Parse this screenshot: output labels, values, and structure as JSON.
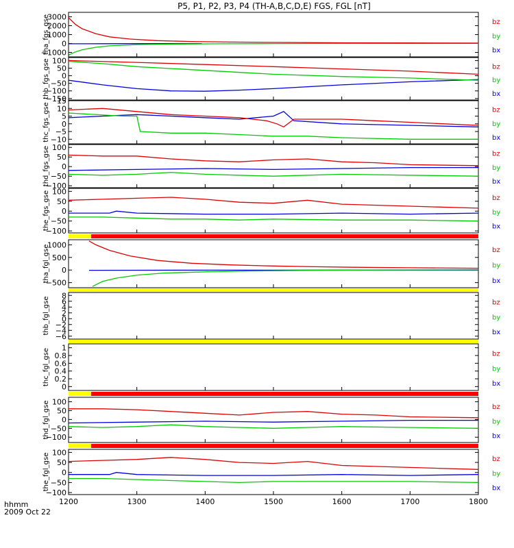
{
  "figure": {
    "title": "P5, P1, P2, P3, P4 (TH-A,B,C,D,E) FGS, FGL [nT]",
    "footer_hhmm": "hhmm",
    "footer_date": "2009 Oct 22",
    "x_ticks": [
      "1200",
      "1300",
      "1400",
      "1500",
      "1600",
      "1700",
      "1800"
    ]
  },
  "colors": {
    "bz": "#dd0000",
    "by": "#00cc00",
    "bx": "#0000dd",
    "bar_yellow": "#ffff00",
    "bar_red": "#ff0000"
  },
  "chart_data": {
    "type": "line",
    "x_range": [
      1200,
      1800
    ],
    "x_unit": "hhmm",
    "legend_labels": [
      "bz",
      "by",
      "bx"
    ],
    "panels": [
      {
        "name": "tha_fgs_gse",
        "ylim": [
          -1500,
          3500
        ],
        "yticks": [
          3000,
          2000,
          1000,
          0,
          -1000
        ],
        "series": {
          "bz": {
            "x": [
              1200,
              1210,
              1220,
              1240,
              1260,
              1290,
              1330,
              1380,
              1440,
              1500,
              1560,
              1620,
              1700,
              1800
            ],
            "y": [
              2900,
              2150,
              1650,
              1100,
              750,
              500,
              320,
              220,
              160,
              120,
              90,
              75,
              60,
              50
            ]
          },
          "by": {
            "x": [
              1200,
              1210,
              1220,
              1240,
              1260,
              1300,
              1360,
              1420,
              1500,
              1600,
              1800
            ],
            "y": [
              -1300,
              -950,
              -700,
              -420,
              -260,
              -120,
              -60,
              -30,
              -10,
              0,
              10
            ]
          },
          "bx": {
            "x": [
              1200,
              1250,
              1300,
              1395
            ],
            "y": [
              -30,
              -20,
              -15,
              -10
            ]
          }
        }
      },
      {
        "name": "thb_fgs_gse",
        "ylim": [
          -160,
          120
        ],
        "yticks": [
          100,
          50,
          0,
          -50,
          -100,
          -150
        ],
        "series": {
          "bz": {
            "x": [
              1200,
              1300,
              1400,
              1500,
              1600,
              1700,
              1800
            ],
            "y": [
              100,
              88,
              74,
              60,
              45,
              30,
              10
            ]
          },
          "by": {
            "x": [
              1200,
              1250,
              1300,
              1400,
              1500,
              1600,
              1700,
              1800
            ],
            "y": [
              95,
              80,
              60,
              35,
              10,
              -5,
              -15,
              -30
            ]
          },
          "bx": {
            "x": [
              1200,
              1250,
              1300,
              1350,
              1400,
              1450,
              1500,
              1600,
              1700,
              1800
            ],
            "y": [
              -30,
              -60,
              -85,
              -100,
              -102,
              -95,
              -85,
              -60,
              -40,
              -25
            ]
          }
        }
      },
      {
        "name": "thc_fgs_gse",
        "ylim": [
          -13,
          15
        ],
        "yticks": [
          15,
          10,
          5,
          0,
          -5,
          -10
        ],
        "series": {
          "bz": {
            "x": [
              1200,
              1250,
              1300,
              1350,
              1400,
              1450,
              1490,
              1505,
              1515,
              1530,
              1600,
              1650,
              1700,
              1750,
              1800
            ],
            "y": [
              9,
              10,
              8,
              6,
              5,
              4,
              2,
              0,
              -2,
              3,
              3,
              2,
              1,
              0,
              -1
            ]
          },
          "by": {
            "x": [
              1200,
              1280,
              1300,
              1305,
              1350,
              1400,
              1450,
              1500,
              1550,
              1600,
              1700,
              1800
            ],
            "y": [
              7,
              5,
              5,
              -5,
              -6,
              -6,
              -7,
              -8,
              -8,
              -9,
              -10,
              -10
            ]
          },
          "bx": {
            "x": [
              1200,
              1250,
              1300,
              1350,
              1400,
              1450,
              1500,
              1515,
              1530,
              1600,
              1700,
              1800
            ],
            "y": [
              4,
              5,
              6,
              5,
              4,
              3,
              5,
              8,
              2,
              0,
              -1,
              -2
            ]
          }
        }
      },
      {
        "name": "thd_fgs_gse",
        "ylim": [
          -110,
          115
        ],
        "yticks": [
          100,
          50,
          0,
          -50,
          -100
        ],
        "series": {
          "bz": {
            "x": [
              1200,
              1250,
              1300,
              1350,
              1400,
              1450,
              1500,
              1550,
              1600,
              1650,
              1700,
              1800
            ],
            "y": [
              60,
              55,
              55,
              40,
              30,
              25,
              35,
              40,
              25,
              20,
              10,
              5
            ]
          },
          "by": {
            "x": [
              1200,
              1250,
              1300,
              1350,
              1400,
              1450,
              1500,
              1550,
              1600,
              1700,
              1800
            ],
            "y": [
              -40,
              -45,
              -40,
              -30,
              -40,
              -45,
              -50,
              -45,
              -40,
              -45,
              -50
            ]
          },
          "bx": {
            "x": [
              1200,
              1300,
              1400,
              1500,
              1600,
              1700,
              1800
            ],
            "y": [
              -20,
              -15,
              -10,
              -15,
              -10,
              -5,
              -5
            ]
          }
        }
      },
      {
        "name": "the_fgs_gse",
        "ylim": [
          -110,
          115
        ],
        "yticks": [
          100,
          50,
          0,
          -50,
          -100
        ],
        "series": {
          "bz": {
            "x": [
              1200,
              1250,
              1300,
              1350,
              1400,
              1450,
              1500,
              1550,
              1600,
              1700,
              1800
            ],
            "y": [
              55,
              60,
              65,
              70,
              60,
              45,
              40,
              55,
              35,
              25,
              15
            ]
          },
          "by": {
            "x": [
              1200,
              1250,
              1300,
              1350,
              1400,
              1450,
              1500,
              1600,
              1700,
              1800
            ],
            "y": [
              -30,
              -30,
              -35,
              -40,
              -40,
              -45,
              -40,
              -45,
              -45,
              -50
            ]
          },
          "bx": {
            "x": [
              1200,
              1260,
              1270,
              1300,
              1400,
              1500,
              1600,
              1700,
              1800
            ],
            "y": [
              -10,
              -10,
              0,
              -10,
              -15,
              -15,
              -10,
              -15,
              -10
            ]
          }
        }
      },
      {
        "name": "tha_fgl_gse",
        "ylim": [
          -700,
          1200
        ],
        "yticks": [
          1000,
          500,
          0,
          -500
        ],
        "series": {
          "bz": {
            "x": [
              1230,
              1240,
              1260,
              1290,
              1330,
              1380,
              1440,
              1500,
              1560,
              1620,
              1700,
              1800
            ],
            "y": [
              1150,
              1000,
              780,
              560,
              380,
              270,
              200,
              160,
              130,
              110,
              90,
              70
            ]
          },
          "by": {
            "x": [
              1235,
              1250,
              1270,
              1300,
              1340,
              1400,
              1460,
              1540,
              1640,
              1800
            ],
            "y": [
              -650,
              -450,
              -320,
              -200,
              -120,
              -70,
              -40,
              -15,
              0,
              10
            ]
          },
          "bx": {
            "x": [
              1230,
              1300,
              1400,
              1500,
              1600,
              1700,
              1800
            ],
            "y": [
              -10,
              -8,
              -5,
              -5,
              -3,
              -3,
              -2
            ]
          }
        }
      },
      {
        "name": "thb_fgl_gse",
        "ylim": [
          -7,
          9
        ],
        "yticks": [
          8,
          6,
          4,
          2,
          0,
          -2,
          -4,
          -6
        ],
        "series": {}
      },
      {
        "name": "thc_fgl_gse",
        "ylim": [
          -0.1,
          1.1
        ],
        "yticks": [
          1.0,
          0.8,
          0.6,
          0.4,
          0.2,
          0.0
        ],
        "series": {}
      },
      {
        "name": "thd_fgl_gse",
        "ylim": [
          -130,
          125
        ],
        "yticks": [
          100,
          50,
          0,
          -50,
          -100
        ],
        "series": {
          "bz": {
            "x": [
              1200,
              1250,
              1300,
              1350,
              1400,
              1450,
              1500,
              1550,
              1600,
              1650,
              1700,
              1800
            ],
            "y": [
              60,
              60,
              55,
              45,
              35,
              25,
              40,
              45,
              30,
              25,
              15,
              10
            ]
          },
          "by": {
            "x": [
              1200,
              1250,
              1300,
              1350,
              1400,
              1450,
              1500,
              1550,
              1600,
              1700,
              1800
            ],
            "y": [
              -40,
              -45,
              -40,
              -30,
              -40,
              -45,
              -50,
              -45,
              -40,
              -45,
              -50
            ]
          },
          "bx": {
            "x": [
              1200,
              1300,
              1400,
              1500,
              1600,
              1700,
              1800
            ],
            "y": [
              -20,
              -15,
              -10,
              -15,
              -10,
              -5,
              -5
            ]
          }
        }
      },
      {
        "name": "the_fgl_gse",
        "ylim": [
          -110,
          115
        ],
        "yticks": [
          100,
          50,
          0,
          -50,
          -100
        ],
        "series": {
          "bz": {
            "x": [
              1200,
              1250,
              1300,
              1350,
              1400,
              1450,
              1500,
              1550,
              1600,
              1700,
              1800
            ],
            "y": [
              55,
              60,
              65,
              75,
              65,
              50,
              45,
              55,
              35,
              25,
              15
            ]
          },
          "by": {
            "x": [
              1200,
              1250,
              1300,
              1350,
              1400,
              1450,
              1500,
              1600,
              1700,
              1800
            ],
            "y": [
              -30,
              -30,
              -35,
              -40,
              -45,
              -50,
              -45,
              -45,
              -45,
              -50
            ]
          },
          "bx": {
            "x": [
              1200,
              1260,
              1270,
              1300,
              1400,
              1500,
              1600,
              1700,
              1800
            ],
            "y": [
              -10,
              -10,
              0,
              -10,
              -15,
              -15,
              -10,
              -15,
              -10
            ]
          }
        }
      }
    ],
    "status_bars": [
      {
        "segments": [
          {
            "color": "yellow",
            "from": 1200,
            "to": 1233
          },
          {
            "color": "red",
            "from": 1233,
            "to": 1800
          }
        ]
      },
      {
        "segments": [
          {
            "color": "yellow",
            "from": 1200,
            "to": 1800
          }
        ]
      },
      {
        "segments": [
          {
            "color": "yellow",
            "from": 1200,
            "to": 1800
          }
        ]
      },
      {
        "segments": [
          {
            "color": "yellow",
            "from": 1200,
            "to": 1233
          },
          {
            "color": "red",
            "from": 1233,
            "to": 1800
          }
        ]
      },
      {
        "segments": [
          {
            "color": "yellow",
            "from": 1200,
            "to": 1233
          },
          {
            "color": "red",
            "from": 1233,
            "to": 1800
          }
        ]
      }
    ]
  }
}
